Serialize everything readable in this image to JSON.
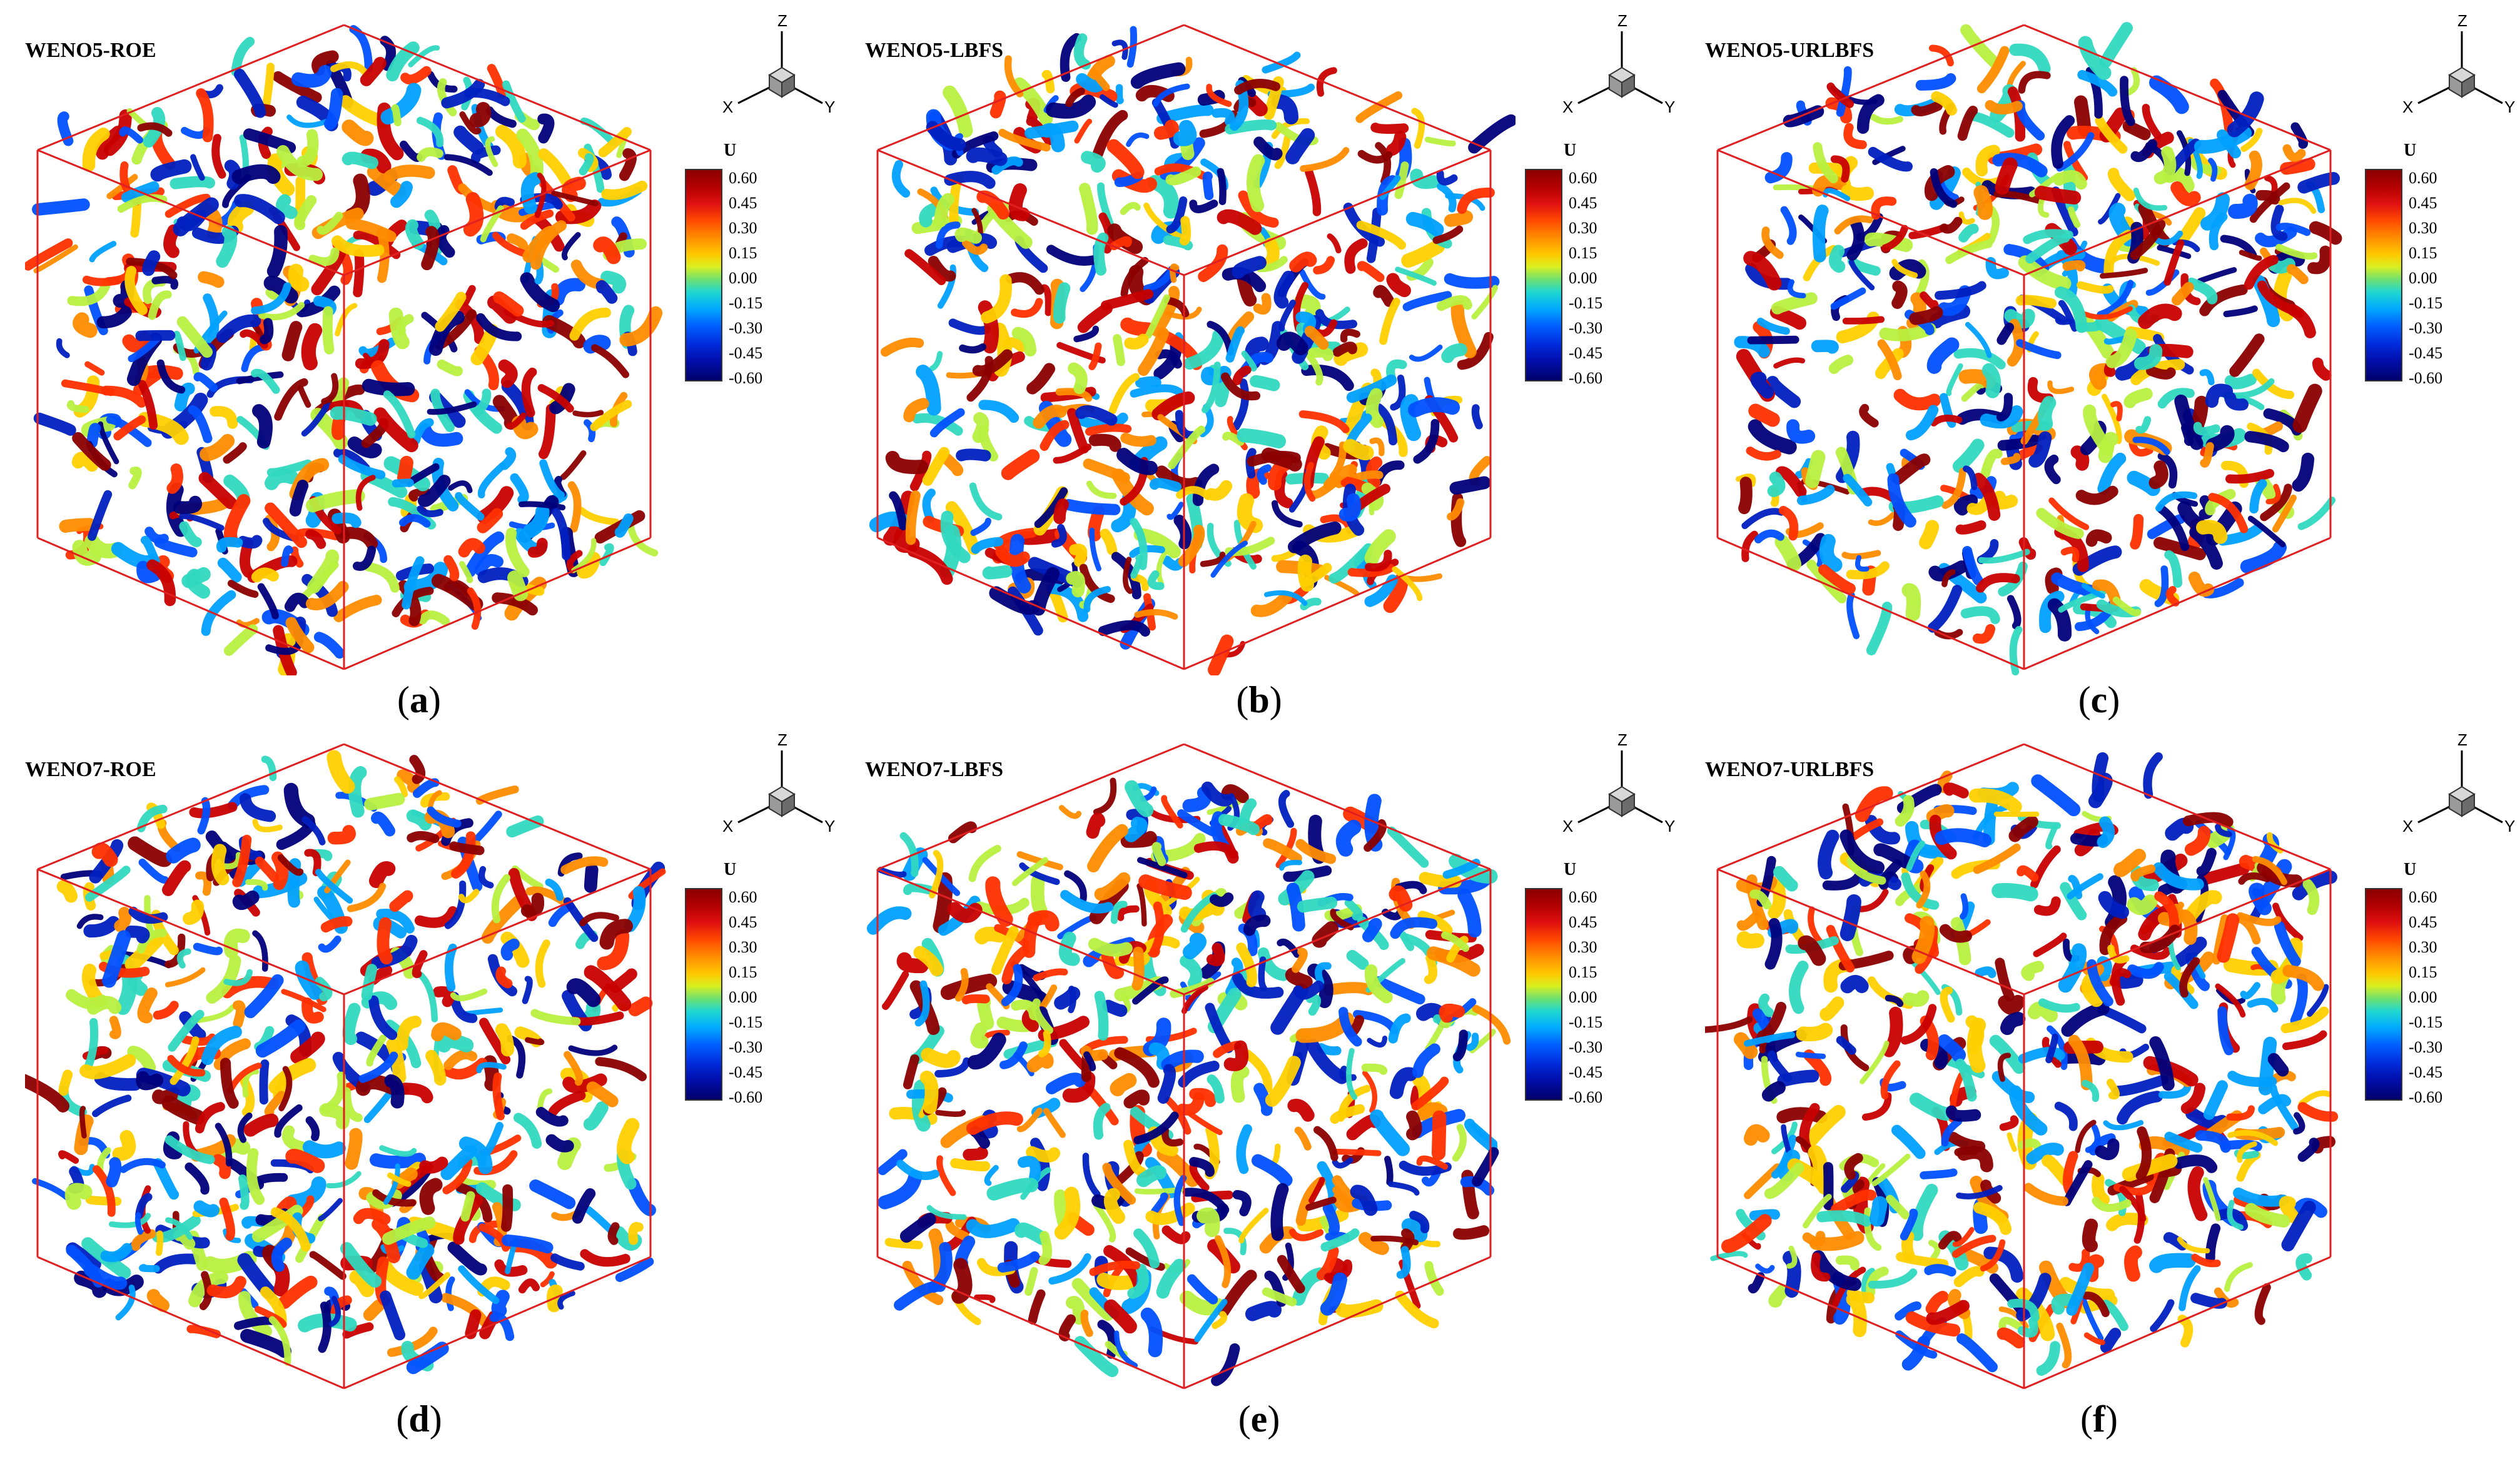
{
  "legend": {
    "title": "U",
    "ticks": [
      "0.60",
      "0.45",
      "0.30",
      "0.15",
      "0.00",
      "-0.15",
      "-0.30",
      "-0.45",
      "-0.60"
    ]
  },
  "axis_triad": {
    "z": "Z",
    "x": "X",
    "y": "Y"
  },
  "colors": {
    "box_edge": "#e02020",
    "high": "#c00000",
    "mid": "#f0d020",
    "low": "#0018b0"
  },
  "panels": [
    {
      "title": "WENO5-ROE",
      "caption_open": "(",
      "caption_letter": "a",
      "caption_close": ")"
    },
    {
      "title": "WENO5-LBFS",
      "caption_open": "(",
      "caption_letter": "b",
      "caption_close": ")"
    },
    {
      "title": "WENO5-URLBFS",
      "caption_open": "(",
      "caption_letter": "c",
      "caption_close": ")"
    },
    {
      "title": "WENO7-ROE",
      "caption_open": "(",
      "caption_letter": "d",
      "caption_close": ")"
    },
    {
      "title": "WENO7-LBFS",
      "caption_open": "(",
      "caption_letter": "e",
      "caption_close": ")"
    },
    {
      "title": "WENO7-URLBFS",
      "caption_open": "(",
      "caption_letter": "f",
      "caption_close": ")"
    }
  ]
}
